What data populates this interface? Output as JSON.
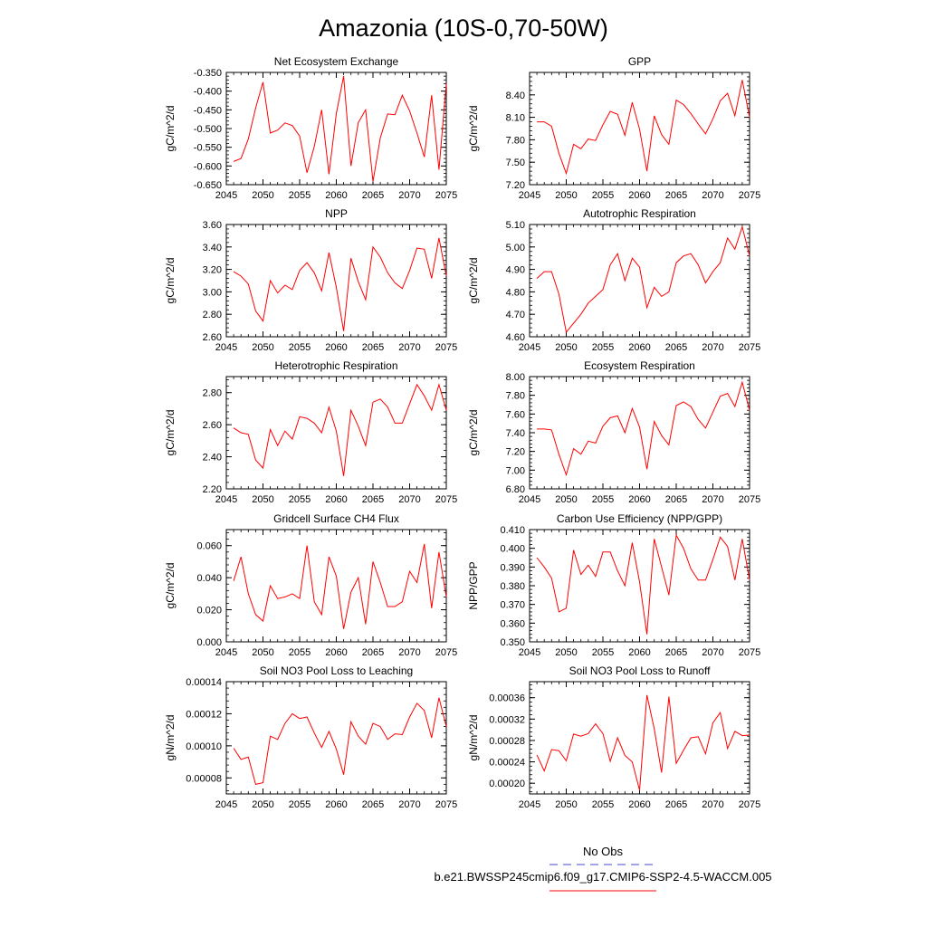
{
  "title": "Amazonia (10S-0,70-50W)",
  "colors": {
    "model_line": "#ff0000",
    "obs_line": "#6a6ad8",
    "frame": "#000000"
  },
  "legend": {
    "obs_label": "No Obs",
    "model_label": "b.e21.BWSSP245cmip6.f09_g17.CMIP6-SSP2-4.5-WACCM.005"
  },
  "chart_data": [
    {
      "type": "line",
      "title": "Net Ecosystem Exchange",
      "ylabel": "gC/m^2/d",
      "xlabel": "",
      "xlim": [
        2045,
        2075
      ],
      "ylim": [
        -0.65,
        -0.35
      ],
      "xticks": [
        2045,
        2050,
        2055,
        2060,
        2065,
        2070,
        2075
      ],
      "xtick_labels": [
        "2045",
        "2050",
        "2055",
        "2060",
        "2065",
        "2070",
        "2075"
      ],
      "yticks": [
        -0.65,
        -0.6,
        -0.55,
        -0.5,
        -0.45,
        -0.4,
        -0.35
      ],
      "ytick_labels": [
        "-0.650",
        "-0.600",
        "-0.550",
        "-0.500",
        "-0.450",
        "-0.400",
        "-0.350"
      ],
      "x": [
        2046,
        2047,
        2048,
        2049,
        2050,
        2051,
        2052,
        2053,
        2054,
        2055,
        2056,
        2057,
        2058,
        2059,
        2060,
        2061,
        2062,
        2063,
        2064,
        2065,
        2066,
        2067,
        2068,
        2069,
        2070,
        2071,
        2072,
        2073,
        2074,
        2075
      ],
      "values": [
        -0.588,
        -0.58,
        -0.528,
        -0.445,
        -0.376,
        -0.512,
        -0.504,
        -0.485,
        -0.492,
        -0.52,
        -0.618,
        -0.548,
        -0.45,
        -0.622,
        -0.46,
        -0.36,
        -0.6,
        -0.484,
        -0.45,
        -0.642,
        -0.525,
        -0.461,
        -0.463,
        -0.411,
        -0.453,
        -0.512,
        -0.576,
        -0.411,
        -0.61,
        -0.38
      ]
    },
    {
      "type": "line",
      "title": "GPP",
      "ylabel": "gC/m^2/d",
      "xlabel": "",
      "xlim": [
        2045,
        2075
      ],
      "ylim": [
        7.2,
        8.7
      ],
      "xticks": [
        2045,
        2050,
        2055,
        2060,
        2065,
        2070,
        2075
      ],
      "xtick_labels": [
        "2045",
        "2050",
        "2055",
        "2060",
        "2065",
        "2070",
        "2075"
      ],
      "yticks": [
        7.2,
        7.5,
        7.8,
        8.1,
        8.4
      ],
      "ytick_labels": [
        "7.20",
        "7.50",
        "7.80",
        "8.10",
        "8.40"
      ],
      "x": [
        2046,
        2047,
        2048,
        2049,
        2050,
        2051,
        2052,
        2053,
        2054,
        2055,
        2056,
        2057,
        2058,
        2059,
        2060,
        2061,
        2062,
        2063,
        2064,
        2065,
        2066,
        2067,
        2068,
        2069,
        2070,
        2071,
        2072,
        2073,
        2074,
        2075
      ],
      "values": [
        8.04,
        8.04,
        7.98,
        7.62,
        7.35,
        7.74,
        7.68,
        7.81,
        7.79,
        8.0,
        8.18,
        8.14,
        7.86,
        8.3,
        7.94,
        7.38,
        8.12,
        7.87,
        7.74,
        8.33,
        8.27,
        8.15,
        8.01,
        7.88,
        8.08,
        8.32,
        8.42,
        8.12,
        8.6,
        8.1
      ]
    },
    {
      "type": "line",
      "title": "NPP",
      "ylabel": "gC/m^2/d",
      "xlabel": "",
      "xlim": [
        2045,
        2075
      ],
      "ylim": [
        2.6,
        3.6
      ],
      "xticks": [
        2045,
        2050,
        2055,
        2060,
        2065,
        2070,
        2075
      ],
      "xtick_labels": [
        "2045",
        "2050",
        "2055",
        "2060",
        "2065",
        "2070",
        "2075"
      ],
      "yticks": [
        2.6,
        2.8,
        3.0,
        3.2,
        3.4,
        3.6
      ],
      "ytick_labels": [
        "2.60",
        "2.80",
        "3.00",
        "3.20",
        "3.40",
        "3.60"
      ],
      "x": [
        2046,
        2047,
        2048,
        2049,
        2050,
        2051,
        2052,
        2053,
        2054,
        2055,
        2056,
        2057,
        2058,
        2059,
        2060,
        2061,
        2062,
        2063,
        2064,
        2065,
        2066,
        2067,
        2068,
        2069,
        2070,
        2071,
        2072,
        2073,
        2074,
        2075
      ],
      "values": [
        3.18,
        3.14,
        3.07,
        2.83,
        2.74,
        3.1,
        2.99,
        3.06,
        3.02,
        3.19,
        3.26,
        3.17,
        3.01,
        3.35,
        3.04,
        2.65,
        3.3,
        3.09,
        2.93,
        3.4,
        3.31,
        3.17,
        3.08,
        3.03,
        3.19,
        3.39,
        3.38,
        3.12,
        3.48,
        3.14
      ]
    },
    {
      "type": "line",
      "title": "Autotrophic Respiration",
      "ylabel": "gC/m^2/d",
      "xlabel": "",
      "xlim": [
        2045,
        2075
      ],
      "ylim": [
        4.6,
        5.1
      ],
      "xticks": [
        2045,
        2050,
        2055,
        2060,
        2065,
        2070,
        2075
      ],
      "xtick_labels": [
        "2045",
        "2050",
        "2055",
        "2060",
        "2065",
        "2070",
        "2075"
      ],
      "yticks": [
        4.6,
        4.7,
        4.8,
        4.9,
        5.0,
        5.1
      ],
      "ytick_labels": [
        "4.60",
        "4.70",
        "4.80",
        "4.90",
        "5.00",
        "5.10"
      ],
      "x": [
        2046,
        2047,
        2048,
        2049,
        2050,
        2051,
        2052,
        2053,
        2054,
        2055,
        2056,
        2057,
        2058,
        2059,
        2060,
        2061,
        2062,
        2063,
        2064,
        2065,
        2066,
        2067,
        2068,
        2069,
        2070,
        2071,
        2072,
        2073,
        2074,
        2075
      ],
      "values": [
        4.86,
        4.89,
        4.89,
        4.79,
        4.62,
        4.66,
        4.7,
        4.75,
        4.78,
        4.81,
        4.92,
        4.97,
        4.85,
        4.95,
        4.91,
        4.73,
        4.82,
        4.78,
        4.8,
        4.93,
        4.96,
        4.97,
        4.92,
        4.84,
        4.89,
        4.93,
        5.04,
        4.99,
        5.09,
        4.96
      ]
    },
    {
      "type": "line",
      "title": "Heterotrophic Respiration",
      "ylabel": "gC/m^2/d",
      "xlabel": "",
      "xlim": [
        2045,
        2075
      ],
      "ylim": [
        2.2,
        2.9
      ],
      "xticks": [
        2045,
        2050,
        2055,
        2060,
        2065,
        2070,
        2075
      ],
      "xtick_labels": [
        "2045",
        "2050",
        "2055",
        "2060",
        "2065",
        "2070",
        "2075"
      ],
      "yticks": [
        2.2,
        2.4,
        2.6,
        2.8
      ],
      "ytick_labels": [
        "2.20",
        "2.40",
        "2.60",
        "2.80"
      ],
      "x": [
        2046,
        2047,
        2048,
        2049,
        2050,
        2051,
        2052,
        2053,
        2054,
        2055,
        2056,
        2057,
        2058,
        2059,
        2060,
        2061,
        2062,
        2063,
        2064,
        2065,
        2066,
        2067,
        2068,
        2069,
        2070,
        2071,
        2072,
        2073,
        2074,
        2075
      ],
      "values": [
        2.58,
        2.55,
        2.54,
        2.38,
        2.33,
        2.57,
        2.47,
        2.56,
        2.51,
        2.65,
        2.64,
        2.61,
        2.55,
        2.71,
        2.56,
        2.28,
        2.69,
        2.59,
        2.47,
        2.74,
        2.76,
        2.71,
        2.61,
        2.61,
        2.73,
        2.85,
        2.78,
        2.69,
        2.85,
        2.69
      ]
    },
    {
      "type": "line",
      "title": "Ecosystem Respiration",
      "ylabel": "gC/m^2/d",
      "xlabel": "",
      "xlim": [
        2045,
        2075
      ],
      "ylim": [
        6.8,
        8.0
      ],
      "xticks": [
        2045,
        2050,
        2055,
        2060,
        2065,
        2070,
        2075
      ],
      "xtick_labels": [
        "2045",
        "2050",
        "2055",
        "2060",
        "2065",
        "2070",
        "2075"
      ],
      "yticks": [
        6.8,
        7.0,
        7.2,
        7.4,
        7.6,
        7.8,
        8.0
      ],
      "ytick_labels": [
        "6.80",
        "7.00",
        "7.20",
        "7.40",
        "7.60",
        "7.80",
        "8.00"
      ],
      "x": [
        2046,
        2047,
        2048,
        2049,
        2050,
        2051,
        2052,
        2053,
        2054,
        2055,
        2056,
        2057,
        2058,
        2059,
        2060,
        2061,
        2062,
        2063,
        2064,
        2065,
        2066,
        2067,
        2068,
        2069,
        2070,
        2071,
        2072,
        2073,
        2074,
        2075
      ],
      "values": [
        7.44,
        7.44,
        7.43,
        7.17,
        6.95,
        7.23,
        7.17,
        7.31,
        7.29,
        7.47,
        7.56,
        7.58,
        7.4,
        7.66,
        7.46,
        7.01,
        7.52,
        7.37,
        7.27,
        7.69,
        7.73,
        7.68,
        7.54,
        7.45,
        7.62,
        7.79,
        7.82,
        7.68,
        7.94,
        7.64
      ]
    },
    {
      "type": "line",
      "title": "Gridcell Surface CH4 Flux",
      "ylabel": "gC/m^2/d",
      "xlabel": "",
      "xlim": [
        2045,
        2075
      ],
      "ylim": [
        0.0,
        0.07
      ],
      "xticks": [
        2045,
        2050,
        2055,
        2060,
        2065,
        2070,
        2075
      ],
      "xtick_labels": [
        "2045",
        "2050",
        "2055",
        "2060",
        "2065",
        "2070",
        "2075"
      ],
      "yticks": [
        0.0,
        0.02,
        0.04,
        0.06
      ],
      "ytick_labels": [
        "0.000",
        "0.020",
        "0.040",
        "0.060"
      ],
      "x": [
        2046,
        2047,
        2048,
        2049,
        2050,
        2051,
        2052,
        2053,
        2054,
        2055,
        2056,
        2057,
        2058,
        2059,
        2060,
        2061,
        2062,
        2063,
        2064,
        2065,
        2066,
        2067,
        2068,
        2069,
        2070,
        2071,
        2072,
        2073,
        2074,
        2075
      ],
      "values": [
        0.038,
        0.053,
        0.03,
        0.017,
        0.013,
        0.035,
        0.027,
        0.028,
        0.03,
        0.027,
        0.06,
        0.025,
        0.017,
        0.053,
        0.041,
        0.008,
        0.031,
        0.04,
        0.011,
        0.05,
        0.037,
        0.022,
        0.022,
        0.025,
        0.044,
        0.037,
        0.061,
        0.021,
        0.056,
        0.028
      ]
    },
    {
      "type": "line",
      "title": "Carbon Use Efficiency (NPP/GPP)",
      "ylabel": "NPP/GPP",
      "xlabel": "",
      "xlim": [
        2045,
        2075
      ],
      "ylim": [
        0.35,
        0.41
      ],
      "xticks": [
        2045,
        2050,
        2055,
        2060,
        2065,
        2070,
        2075
      ],
      "xtick_labels": [
        "2045",
        "2050",
        "2055",
        "2060",
        "2065",
        "2070",
        "2075"
      ],
      "yticks": [
        0.35,
        0.36,
        0.37,
        0.38,
        0.39,
        0.4,
        0.41
      ],
      "ytick_labels": [
        "0.350",
        "0.360",
        "0.370",
        "0.380",
        "0.390",
        "0.400",
        "0.410"
      ],
      "x": [
        2046,
        2047,
        2048,
        2049,
        2050,
        2051,
        2052,
        2053,
        2054,
        2055,
        2056,
        2057,
        2058,
        2059,
        2060,
        2061,
        2062,
        2063,
        2064,
        2065,
        2066,
        2067,
        2068,
        2069,
        2070,
        2071,
        2072,
        2073,
        2074,
        2075
      ],
      "values": [
        0.395,
        0.39,
        0.384,
        0.366,
        0.368,
        0.399,
        0.386,
        0.391,
        0.385,
        0.398,
        0.398,
        0.388,
        0.38,
        0.403,
        0.382,
        0.354,
        0.405,
        0.39,
        0.375,
        0.407,
        0.4,
        0.389,
        0.383,
        0.383,
        0.394,
        0.406,
        0.401,
        0.383,
        0.405,
        0.383
      ]
    },
    {
      "type": "line",
      "title": "Soil NO3 Pool Loss to Leaching",
      "ylabel": "gN/m^2/d",
      "xlabel": "",
      "xlim": [
        2045,
        2075
      ],
      "ylim": [
        7e-05,
        0.00014
      ],
      "xticks": [
        2045,
        2050,
        2055,
        2060,
        2065,
        2070,
        2075
      ],
      "xtick_labels": [
        "2045",
        "2050",
        "2055",
        "2060",
        "2065",
        "2070",
        "2075"
      ],
      "yticks": [
        8e-05,
        0.0001,
        0.00012,
        0.00014
      ],
      "ytick_labels": [
        "0.00008",
        "0.00010",
        "0.00012",
        "0.00014"
      ],
      "x": [
        2046,
        2047,
        2048,
        2049,
        2050,
        2051,
        2052,
        2053,
        2054,
        2055,
        2056,
        2057,
        2058,
        2059,
        2060,
        2061,
        2062,
        2063,
        2064,
        2065,
        2066,
        2067,
        2068,
        2069,
        2070,
        2071,
        2072,
        2073,
        2074,
        2075
      ],
      "values": [
        9.85e-05,
        9.15e-05,
        9.3e-05,
        7.6e-05,
        7.7e-05,
        0.000106,
        0.000104,
        0.000114,
        0.00012,
        0.000117,
        0.000118,
        0.000108,
        9.9e-05,
        0.000109,
        9.8e-05,
        8.2e-05,
        0.000115,
        0.000106,
        0.000101,
        0.000114,
        0.000112,
        0.000104,
        0.0001075,
        0.000107,
        0.000118,
        0.0001265,
        0.000122,
        0.000105,
        0.00013,
        0.000112
      ]
    },
    {
      "type": "line",
      "title": "Soil NO3 Pool Loss to Runoff",
      "ylabel": "gN/m^2/d",
      "xlabel": "",
      "xlim": [
        2045,
        2075
      ],
      "ylim": [
        0.00018,
        0.00039
      ],
      "xticks": [
        2045,
        2050,
        2055,
        2060,
        2065,
        2070,
        2075
      ],
      "xtick_labels": [
        "2045",
        "2050",
        "2055",
        "2060",
        "2065",
        "2070",
        "2075"
      ],
      "yticks": [
        0.0002,
        0.00024,
        0.00028,
        0.00032,
        0.00036
      ],
      "ytick_labels": [
        "0.00020",
        "0.00024",
        "0.00028",
        "0.00032",
        "0.00036"
      ],
      "x": [
        2046,
        2047,
        2048,
        2049,
        2050,
        2051,
        2052,
        2053,
        2054,
        2055,
        2056,
        2057,
        2058,
        2059,
        2060,
        2061,
        2062,
        2063,
        2064,
        2065,
        2066,
        2067,
        2068,
        2069,
        2070,
        2071,
        2072,
        2073,
        2074,
        2075
      ],
      "values": [
        0.000253,
        0.000223,
        0.000263,
        0.000261,
        0.000242,
        0.000292,
        0.000288,
        0.000293,
        0.000311,
        0.000293,
        0.000241,
        0.000285,
        0.000252,
        0.00024,
        0.000187,
        0.000365,
        0.000302,
        0.00022,
        0.000362,
        0.000237,
        0.000262,
        0.000285,
        0.000287,
        0.000255,
        0.000313,
        0.000332,
        0.000265,
        0.000297,
        0.000289,
        0.00029
      ]
    }
  ]
}
